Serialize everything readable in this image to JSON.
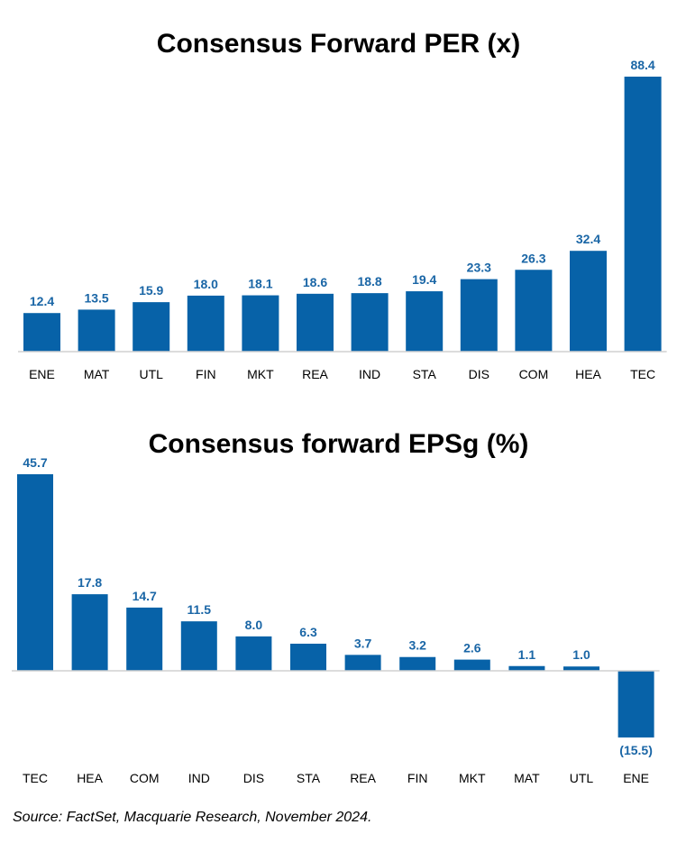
{
  "chart_data": [
    {
      "type": "bar",
      "title": "Consensus Forward PER (x)",
      "categories": [
        "ENE",
        "MAT",
        "UTL",
        "FIN",
        "MKT",
        "REA",
        "IND",
        "STA",
        "DIS",
        "COM",
        "HEA",
        "TEC"
      ],
      "values": [
        12.4,
        13.5,
        15.9,
        18.0,
        18.1,
        18.6,
        18.8,
        19.4,
        23.3,
        26.3,
        32.4,
        88.4
      ],
      "value_labels": [
        "12.4",
        "13.5",
        "15.9",
        "18.0",
        "18.1",
        "18.6",
        "18.8",
        "19.4",
        "23.3",
        "26.3",
        "32.4",
        "88.4"
      ],
      "ylim": [
        0,
        88.4
      ],
      "grid": false,
      "bar_color": "#0762a8"
    },
    {
      "type": "bar",
      "title": "Consensus forward EPSg (%)",
      "categories": [
        "TEC",
        "HEA",
        "COM",
        "IND",
        "DIS",
        "STA",
        "REA",
        "FIN",
        "MKT",
        "MAT",
        "UTL",
        "ENE"
      ],
      "values": [
        45.7,
        17.8,
        14.7,
        11.5,
        8.0,
        6.3,
        3.7,
        3.2,
        2.6,
        1.1,
        1.0,
        -15.5
      ],
      "value_labels": [
        "45.7",
        "17.8",
        "14.7",
        "11.5",
        "8.0",
        "6.3",
        "3.7",
        "3.2",
        "2.6",
        "1.1",
        "1.0",
        "(15.5)"
      ],
      "ylim": [
        -15.5,
        45.7
      ],
      "grid": false,
      "bar_color": "#0762a8"
    }
  ],
  "colors": {
    "bar": "#0762a8",
    "label": "#1a66a6"
  },
  "source": "Source: FactSet, Macquarie Research, November 2024."
}
